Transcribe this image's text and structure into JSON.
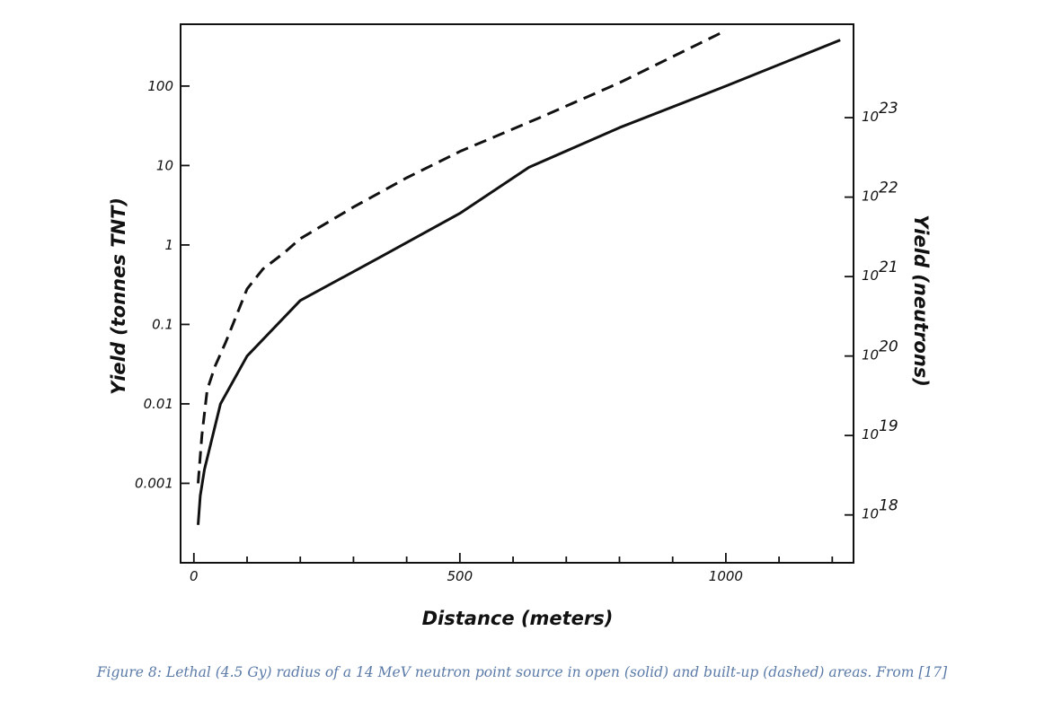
{
  "caption": "Figure 8: Lethal (4.5 Gy) radius of a 14 MeV neutron point source in open (solid) and built-up (dashed) areas. From [17]",
  "chart_data": {
    "type": "line",
    "title": "",
    "xlabel": "Distance (meters)",
    "ylabel": "Yield (tonnes TNT)",
    "ylabel_right": "Yield (neutrons)",
    "xlim": [
      -25,
      1240
    ],
    "ylim": [
      0.0001,
      600
    ],
    "yscale": "log",
    "grid": false,
    "x_ticks": [
      {
        "value": 0,
        "label": "0"
      },
      {
        "value": 500,
        "label": "500"
      },
      {
        "value": 1000,
        "label": "1000"
      }
    ],
    "y_ticks": [
      {
        "value": 0.001,
        "label": "0.001"
      },
      {
        "value": 0.01,
        "label": "0.01"
      },
      {
        "value": 0.1,
        "label": "0.1"
      },
      {
        "value": 1,
        "label": "1"
      },
      {
        "value": 10,
        "label": "10"
      },
      {
        "value": 100,
        "label": "100"
      }
    ],
    "y2_ticks": [
      {
        "value": 0.0004,
        "base": "10",
        "exp": "18"
      },
      {
        "value": 0.004,
        "base": "10",
        "exp": "19"
      },
      {
        "value": 0.04,
        "base": "10",
        "exp": "20"
      },
      {
        "value": 0.4,
        "base": "10",
        "exp": "21"
      },
      {
        "value": 4,
        "base": "10",
        "exp": "22"
      },
      {
        "value": 40,
        "base": "10",
        "exp": "23"
      }
    ],
    "series": [
      {
        "style": "solid",
        "x": [
          8,
          12,
          20,
          50,
          100,
          200,
          350,
          500,
          630,
          800,
          1000,
          1215
        ],
        "y": [
          0.0003,
          0.0007,
          0.0015,
          0.01,
          0.04,
          0.2,
          0.7,
          2.5,
          9.5,
          30,
          100,
          380
        ]
      },
      {
        "style": "dashed",
        "x": [
          8,
          15,
          25,
          40,
          60,
          100,
          130,
          170,
          200,
          300,
          400,
          500,
          650,
          800,
          1000
        ],
        "y": [
          0.001,
          0.004,
          0.015,
          0.03,
          0.06,
          0.28,
          0.5,
          0.8,
          1.2,
          3,
          7,
          15,
          40,
          110,
          500
        ]
      }
    ]
  }
}
